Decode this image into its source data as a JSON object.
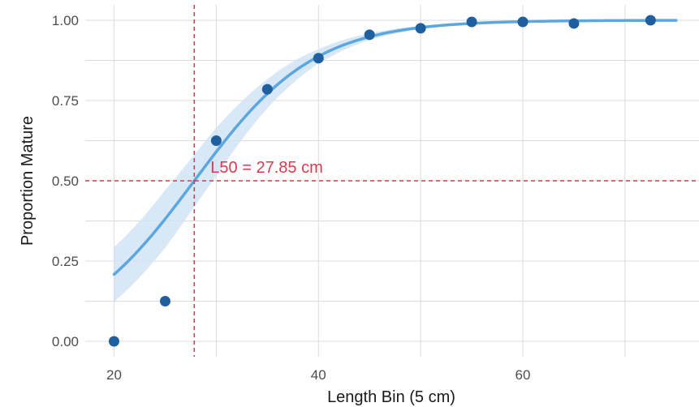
{
  "chart_data": {
    "type": "scatter",
    "xlabel": "Length Bin (5 cm)",
    "ylabel": "Proportion Mature",
    "xlim": [
      17.5,
      76.5
    ],
    "ylim": [
      -0.05,
      1.05
    ],
    "x_ticks": [
      20,
      40,
      60
    ],
    "x_tick_labels": [
      "20",
      "40",
      "60"
    ],
    "y_ticks": [
      0,
      0.25,
      0.5,
      0.75,
      1.0
    ],
    "y_tick_labels": [
      "0.00",
      "0.25",
      "0.50",
      "0.75",
      "1.00"
    ],
    "grid": true,
    "points": [
      {
        "x": 20,
        "y": 0.0
      },
      {
        "x": 25,
        "y": 0.125
      },
      {
        "x": 30,
        "y": 0.625
      },
      {
        "x": 35,
        "y": 0.785
      },
      {
        "x": 40,
        "y": 0.882
      },
      {
        "x": 45,
        "y": 0.955
      },
      {
        "x": 50,
        "y": 0.975
      },
      {
        "x": 55,
        "y": 0.995
      },
      {
        "x": 60,
        "y": 0.995
      },
      {
        "x": 65,
        "y": 0.99
      },
      {
        "x": 72.5,
        "y": 1.0
      }
    ],
    "fit_curve": {
      "model": "logistic",
      "x_range": [
        20,
        75
      ],
      "band_half_width": [
        {
          "x": 20,
          "w": 0.085
        },
        {
          "x": 25,
          "w": 0.09
        },
        {
          "x": 30,
          "w": 0.075
        },
        {
          "x": 35,
          "w": 0.045
        },
        {
          "x": 40,
          "w": 0.022
        },
        {
          "x": 45,
          "w": 0.01
        },
        {
          "x": 50,
          "w": 0.005
        },
        {
          "x": 60,
          "w": 0.001
        },
        {
          "x": 75,
          "w": 0.0
        }
      ]
    },
    "l50": {
      "x": 27.85,
      "y": 0.5,
      "label": "L50 = 27.85 cm"
    },
    "colors": {
      "points": "#1f5fa0",
      "curve": "#5ba7de",
      "band": "#cfe2f5",
      "reference": "#d93a4d",
      "grid": "#dcdcdc"
    }
  }
}
